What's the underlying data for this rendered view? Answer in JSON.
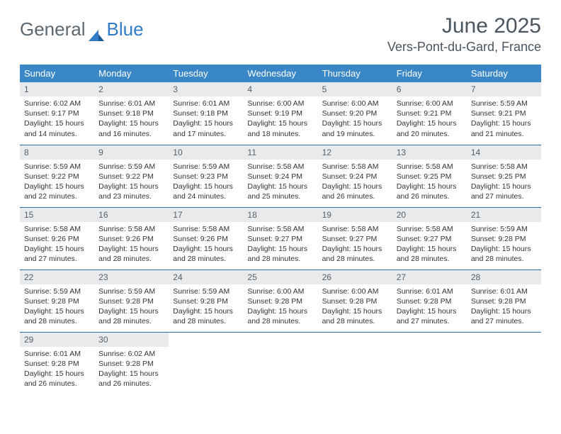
{
  "brand": {
    "part1": "General",
    "part2": "Blue"
  },
  "title": "June 2025",
  "location": "Vers-Pont-du-Gard, France",
  "colors": {
    "header_bg": "#3a87c8",
    "header_text": "#ffffff",
    "daynum_bg": "#e9eaeb",
    "text": "#333333",
    "title_text": "#4a5560",
    "rule": "#2a6fa8"
  },
  "weekdays": [
    "Sunday",
    "Monday",
    "Tuesday",
    "Wednesday",
    "Thursday",
    "Friday",
    "Saturday"
  ],
  "days": [
    {
      "n": "1",
      "sr": "6:02 AM",
      "ss": "9:17 PM",
      "dl": "15 hours and 14 minutes."
    },
    {
      "n": "2",
      "sr": "6:01 AM",
      "ss": "9:18 PM",
      "dl": "15 hours and 16 minutes."
    },
    {
      "n": "3",
      "sr": "6:01 AM",
      "ss": "9:18 PM",
      "dl": "15 hours and 17 minutes."
    },
    {
      "n": "4",
      "sr": "6:00 AM",
      "ss": "9:19 PM",
      "dl": "15 hours and 18 minutes."
    },
    {
      "n": "5",
      "sr": "6:00 AM",
      "ss": "9:20 PM",
      "dl": "15 hours and 19 minutes."
    },
    {
      "n": "6",
      "sr": "6:00 AM",
      "ss": "9:21 PM",
      "dl": "15 hours and 20 minutes."
    },
    {
      "n": "7",
      "sr": "5:59 AM",
      "ss": "9:21 PM",
      "dl": "15 hours and 21 minutes."
    },
    {
      "n": "8",
      "sr": "5:59 AM",
      "ss": "9:22 PM",
      "dl": "15 hours and 22 minutes."
    },
    {
      "n": "9",
      "sr": "5:59 AM",
      "ss": "9:22 PM",
      "dl": "15 hours and 23 minutes."
    },
    {
      "n": "10",
      "sr": "5:59 AM",
      "ss": "9:23 PM",
      "dl": "15 hours and 24 minutes."
    },
    {
      "n": "11",
      "sr": "5:58 AM",
      "ss": "9:24 PM",
      "dl": "15 hours and 25 minutes."
    },
    {
      "n": "12",
      "sr": "5:58 AM",
      "ss": "9:24 PM",
      "dl": "15 hours and 26 minutes."
    },
    {
      "n": "13",
      "sr": "5:58 AM",
      "ss": "9:25 PM",
      "dl": "15 hours and 26 minutes."
    },
    {
      "n": "14",
      "sr": "5:58 AM",
      "ss": "9:25 PM",
      "dl": "15 hours and 27 minutes."
    },
    {
      "n": "15",
      "sr": "5:58 AM",
      "ss": "9:26 PM",
      "dl": "15 hours and 27 minutes."
    },
    {
      "n": "16",
      "sr": "5:58 AM",
      "ss": "9:26 PM",
      "dl": "15 hours and 28 minutes."
    },
    {
      "n": "17",
      "sr": "5:58 AM",
      "ss": "9:26 PM",
      "dl": "15 hours and 28 minutes."
    },
    {
      "n": "18",
      "sr": "5:58 AM",
      "ss": "9:27 PM",
      "dl": "15 hours and 28 minutes."
    },
    {
      "n": "19",
      "sr": "5:58 AM",
      "ss": "9:27 PM",
      "dl": "15 hours and 28 minutes."
    },
    {
      "n": "20",
      "sr": "5:58 AM",
      "ss": "9:27 PM",
      "dl": "15 hours and 28 minutes."
    },
    {
      "n": "21",
      "sr": "5:59 AM",
      "ss": "9:28 PM",
      "dl": "15 hours and 28 minutes."
    },
    {
      "n": "22",
      "sr": "5:59 AM",
      "ss": "9:28 PM",
      "dl": "15 hours and 28 minutes."
    },
    {
      "n": "23",
      "sr": "5:59 AM",
      "ss": "9:28 PM",
      "dl": "15 hours and 28 minutes."
    },
    {
      "n": "24",
      "sr": "5:59 AM",
      "ss": "9:28 PM",
      "dl": "15 hours and 28 minutes."
    },
    {
      "n": "25",
      "sr": "6:00 AM",
      "ss": "9:28 PM",
      "dl": "15 hours and 28 minutes."
    },
    {
      "n": "26",
      "sr": "6:00 AM",
      "ss": "9:28 PM",
      "dl": "15 hours and 28 minutes."
    },
    {
      "n": "27",
      "sr": "6:01 AM",
      "ss": "9:28 PM",
      "dl": "15 hours and 27 minutes."
    },
    {
      "n": "28",
      "sr": "6:01 AM",
      "ss": "9:28 PM",
      "dl": "15 hours and 27 minutes."
    },
    {
      "n": "29",
      "sr": "6:01 AM",
      "ss": "9:28 PM",
      "dl": "15 hours and 26 minutes."
    },
    {
      "n": "30",
      "sr": "6:02 AM",
      "ss": "9:28 PM",
      "dl": "15 hours and 26 minutes."
    }
  ],
  "labels": {
    "sunrise": "Sunrise:",
    "sunset": "Sunset:",
    "daylight": "Daylight:"
  }
}
